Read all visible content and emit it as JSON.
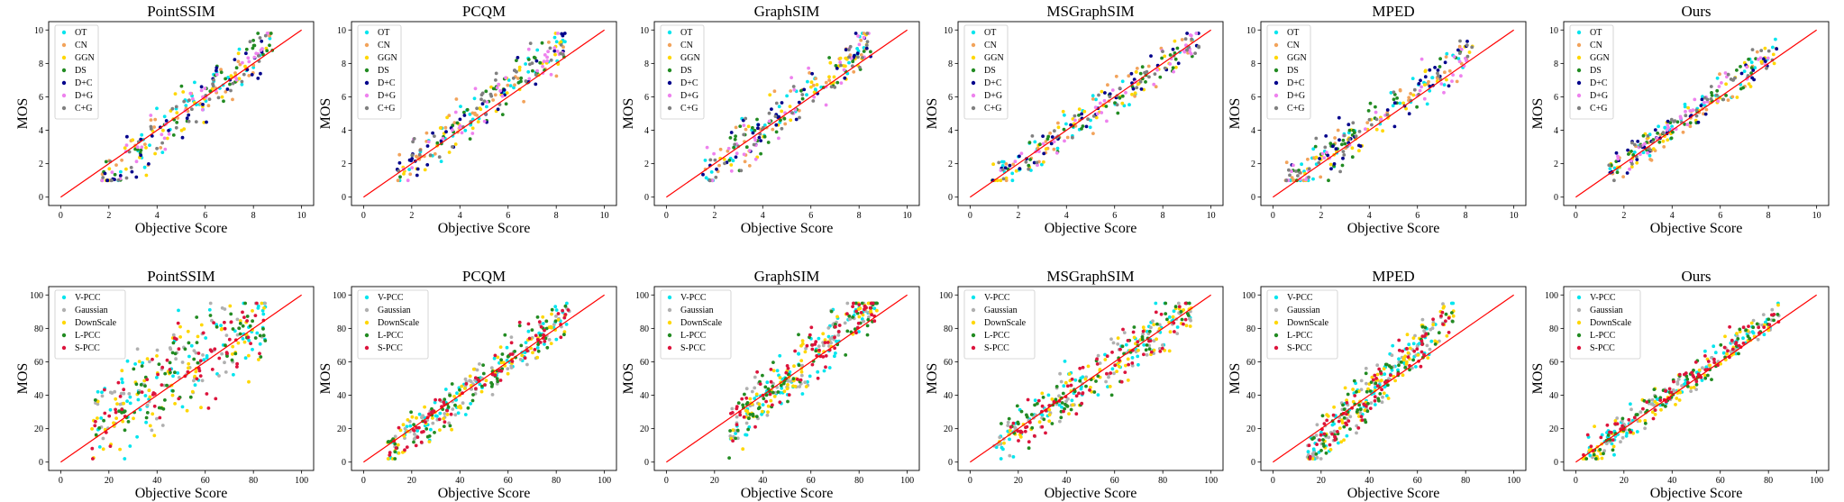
{
  "chart_data": [
    {
      "type": "scatter",
      "title": "PointSSIM",
      "xlabel": "Objective Score",
      "ylabel": "MOS",
      "xlim": [
        0,
        10
      ],
      "ylim": [
        0,
        10
      ],
      "xticks": [
        0,
        2,
        4,
        6,
        8,
        10
      ],
      "yticks": [
        0,
        2,
        4,
        6,
        8,
        10
      ],
      "legend": "top-left",
      "legend_entries": [
        "OT",
        "CN",
        "GGN",
        "DS",
        "D+C",
        "D+G",
        "C+G"
      ],
      "reference_line": {
        "from": [
          0,
          0
        ],
        "to": [
          10,
          10
        ]
      },
      "cluster": {
        "x_range": [
          1.7,
          8.8
        ],
        "y_range": [
          1.0,
          9.8
        ],
        "slope": 1.25,
        "intercept": -1.4,
        "spread": 1.5
      },
      "points_per_series": 36
    },
    {
      "type": "scatter",
      "title": "PCQM",
      "xlabel": "Objective Score",
      "ylabel": "MOS",
      "xlim": [
        0,
        10
      ],
      "ylim": [
        0,
        10
      ],
      "xticks": [
        0,
        2,
        4,
        6,
        8,
        10
      ],
      "yticks": [
        0,
        2,
        4,
        6,
        8,
        10
      ],
      "legend": "top-left",
      "legend_entries": [
        "OT",
        "CN",
        "GGN",
        "DS",
        "D+C",
        "D+G",
        "C+G"
      ],
      "reference_line": {
        "from": [
          0,
          0
        ],
        "to": [
          10,
          10
        ]
      },
      "cluster": {
        "x_range": [
          1.4,
          8.4
        ],
        "y_range": [
          1.0,
          9.8
        ],
        "slope": 1.15,
        "intercept": -0.3,
        "spread": 1.3
      },
      "points_per_series": 36
    },
    {
      "type": "scatter",
      "title": "GraphSIM",
      "xlabel": "Objective Score",
      "ylabel": "MOS",
      "xlim": [
        0,
        10
      ],
      "ylim": [
        0,
        10
      ],
      "xticks": [
        0,
        2,
        4,
        6,
        8,
        10
      ],
      "yticks": [
        0,
        2,
        4,
        6,
        8,
        10
      ],
      "legend": "top-left",
      "legend_entries": [
        "OT",
        "CN",
        "GGN",
        "DS",
        "D+C",
        "D+G",
        "C+G"
      ],
      "reference_line": {
        "from": [
          0,
          0
        ],
        "to": [
          10,
          10
        ]
      },
      "cluster": {
        "x_range": [
          1.5,
          8.5
        ],
        "y_range": [
          1.0,
          9.8
        ],
        "slope": 1.2,
        "intercept": -0.8,
        "spread": 1.4
      },
      "points_per_series": 36
    },
    {
      "type": "scatter",
      "title": "MSGraphSIM",
      "xlabel": "Objective Score",
      "ylabel": "MOS",
      "xlim": [
        0,
        10
      ],
      "ylim": [
        0,
        10
      ],
      "xticks": [
        0,
        2,
        4,
        6,
        8,
        10
      ],
      "yticks": [
        0,
        2,
        4,
        6,
        8,
        10
      ],
      "legend": "top-left",
      "legend_entries": [
        "OT",
        "CN",
        "GGN",
        "DS",
        "D+C",
        "D+G",
        "C+G"
      ],
      "reference_line": {
        "from": [
          0,
          0
        ],
        "to": [
          10,
          10
        ]
      },
      "cluster": {
        "x_range": [
          0.9,
          9.5
        ],
        "y_range": [
          1.0,
          9.8
        ],
        "slope": 1.0,
        "intercept": 0.0,
        "spread": 1.1
      },
      "points_per_series": 36
    },
    {
      "type": "scatter",
      "title": "MPED",
      "xlabel": "Objective Score",
      "ylabel": "MOS",
      "xlim": [
        0,
        10
      ],
      "ylim": [
        0,
        10
      ],
      "xticks": [
        0,
        2,
        4,
        6,
        8,
        10
      ],
      "yticks": [
        0,
        2,
        4,
        6,
        8,
        10
      ],
      "legend": "top-left",
      "legend_entries": [
        "OT",
        "CN",
        "GGN",
        "DS",
        "D+C",
        "D+G",
        "C+G"
      ],
      "reference_line": {
        "from": [
          0,
          0
        ],
        "to": [
          10,
          10
        ]
      },
      "cluster": {
        "x_range": [
          0.5,
          8.3
        ],
        "y_range": [
          1.0,
          9.8
        ],
        "slope": 1.05,
        "intercept": 0.1,
        "spread": 1.2
      },
      "points_per_series": 36
    },
    {
      "type": "scatter",
      "title": "Ours",
      "xlabel": "Objective Score",
      "ylabel": "MOS",
      "xlim": [
        0,
        10
      ],
      "ylim": [
        0,
        10
      ],
      "xticks": [
        0,
        2,
        4,
        6,
        8,
        10
      ],
      "yticks": [
        0,
        2,
        4,
        6,
        8,
        10
      ],
      "legend": "top-left",
      "legend_entries": [
        "OT",
        "CN",
        "GGN",
        "DS",
        "D+C",
        "D+G",
        "C+G"
      ],
      "reference_line": {
        "from": [
          0,
          0
        ],
        "to": [
          10,
          10
        ]
      },
      "cluster": {
        "x_range": [
          1.3,
          8.4
        ],
        "y_range": [
          1.0,
          9.8
        ],
        "slope": 1.05,
        "intercept": 0.0,
        "spread": 0.9
      },
      "points_per_series": 36
    },
    {
      "type": "scatter",
      "title": "PointSSIM",
      "xlabel": "Objective Score",
      "ylabel": "MOS",
      "xlim": [
        0,
        100
      ],
      "ylim": [
        0,
        100
      ],
      "xticks": [
        0,
        20,
        40,
        60,
        80,
        100
      ],
      "yticks": [
        0,
        20,
        40,
        60,
        80,
        100
      ],
      "legend": "top-left",
      "legend_entries": [
        "V-PCC",
        "Gaussian",
        "DownScale",
        "L-PCC",
        "S-PCC"
      ],
      "reference_line": {
        "from": [
          0,
          0
        ],
        "to": [
          100,
          100
        ]
      },
      "cluster": {
        "x_range": [
          13,
          85
        ],
        "y_range": [
          2,
          95
        ],
        "slope": 0.9,
        "intercept": 10,
        "spread": 26
      },
      "points_per_series": 70
    },
    {
      "type": "scatter",
      "title": "PCQM",
      "xlabel": "Objective Score",
      "ylabel": "MOS",
      "xlim": [
        0,
        100
      ],
      "ylim": [
        0,
        100
      ],
      "xticks": [
        0,
        20,
        40,
        60,
        80,
        100
      ],
      "yticks": [
        0,
        20,
        40,
        60,
        80,
        100
      ],
      "legend": "top-left",
      "legend_entries": [
        "V-PCC",
        "Gaussian",
        "DownScale",
        "L-PCC",
        "S-PCC"
      ],
      "reference_line": {
        "from": [
          0,
          0
        ],
        "to": [
          100,
          100
        ]
      },
      "cluster": {
        "x_range": [
          10,
          86
        ],
        "y_range": [
          2,
          95
        ],
        "slope": 1.1,
        "intercept": -5,
        "spread": 12
      },
      "points_per_series": 70
    },
    {
      "type": "scatter",
      "title": "GraphSIM",
      "xlabel": "Objective Score",
      "ylabel": "MOS",
      "xlim": [
        0,
        100
      ],
      "ylim": [
        0,
        100
      ],
      "xticks": [
        0,
        20,
        40,
        60,
        80,
        100
      ],
      "yticks": [
        0,
        20,
        40,
        60,
        80,
        100
      ],
      "legend": "top-left",
      "legend_entries": [
        "V-PCC",
        "Gaussian",
        "DownScale",
        "L-PCC",
        "S-PCC"
      ],
      "reference_line": {
        "from": [
          0,
          0
        ],
        "to": [
          100,
          100
        ]
      },
      "cluster": {
        "x_range": [
          26,
          88
        ],
        "y_range": [
          2,
          95
        ],
        "slope": 1.3,
        "intercept": -15,
        "spread": 16
      },
      "points_per_series": 70
    },
    {
      "type": "scatter",
      "title": "MSGraphSIM",
      "xlabel": "Objective Score",
      "ylabel": "MOS",
      "xlim": [
        0,
        100
      ],
      "ylim": [
        0,
        100
      ],
      "xticks": [
        0,
        20,
        40,
        60,
        80,
        100
      ],
      "yticks": [
        0,
        20,
        40,
        60,
        80,
        100
      ],
      "legend": "top-left",
      "legend_entries": [
        "V-PCC",
        "Gaussian",
        "DownScale",
        "L-PCC",
        "S-PCC"
      ],
      "reference_line": {
        "from": [
          0,
          0
        ],
        "to": [
          100,
          100
        ]
      },
      "cluster": {
        "x_range": [
          10,
          92
        ],
        "y_range": [
          2,
          95
        ],
        "slope": 1.0,
        "intercept": 0,
        "spread": 14
      },
      "points_per_series": 70
    },
    {
      "type": "scatter",
      "title": "MPED",
      "xlabel": "Objective Score",
      "ylabel": "MOS",
      "xlim": [
        0,
        100
      ],
      "ylim": [
        0,
        100
      ],
      "xticks": [
        0,
        20,
        40,
        60,
        80,
        100
      ],
      "yticks": [
        0,
        20,
        40,
        60,
        80,
        100
      ],
      "legend": "top-left",
      "legend_entries": [
        "V-PCC",
        "Gaussian",
        "DownScale",
        "L-PCC",
        "S-PCC"
      ],
      "reference_line": {
        "from": [
          0,
          0
        ],
        "to": [
          100,
          100
        ]
      },
      "cluster": {
        "x_range": [
          14,
          75
        ],
        "y_range": [
          2,
          95
        ],
        "slope": 1.4,
        "intercept": -15,
        "spread": 14
      },
      "points_per_series": 70
    },
    {
      "type": "scatter",
      "title": "Ours",
      "xlabel": "Objective Score",
      "ylabel": "MOS",
      "xlim": [
        0,
        100
      ],
      "ylim": [
        0,
        100
      ],
      "xticks": [
        0,
        20,
        40,
        60,
        80,
        100
      ],
      "yticks": [
        0,
        20,
        40,
        60,
        80,
        100
      ],
      "legend": "top-left",
      "legend_entries": [
        "V-PCC",
        "Gaussian",
        "DownScale",
        "L-PCC",
        "S-PCC"
      ],
      "reference_line": {
        "from": [
          0,
          0
        ],
        "to": [
          100,
          100
        ]
      },
      "cluster": {
        "x_range": [
          3,
          85
        ],
        "y_range": [
          2,
          95
        ],
        "slope": 1.05,
        "intercept": 0,
        "spread": 9
      },
      "points_per_series": 70
    }
  ],
  "series_colors": {
    "OT": "#00e5ee",
    "CN": "#f2a35b",
    "GGN": "#ffd700",
    "DS": "#228b22",
    "D+C": "#00008b",
    "D+G": "#ee82ee",
    "C+G": "#808080",
    "V-PCC": "#00e5ee",
    "Gaussian": "#b0b0b0",
    "DownScale": "#ffd700",
    "L-PCC": "#228b22",
    "S-PCC": "#dc143c"
  },
  "reference_line_color": "#ff0000"
}
